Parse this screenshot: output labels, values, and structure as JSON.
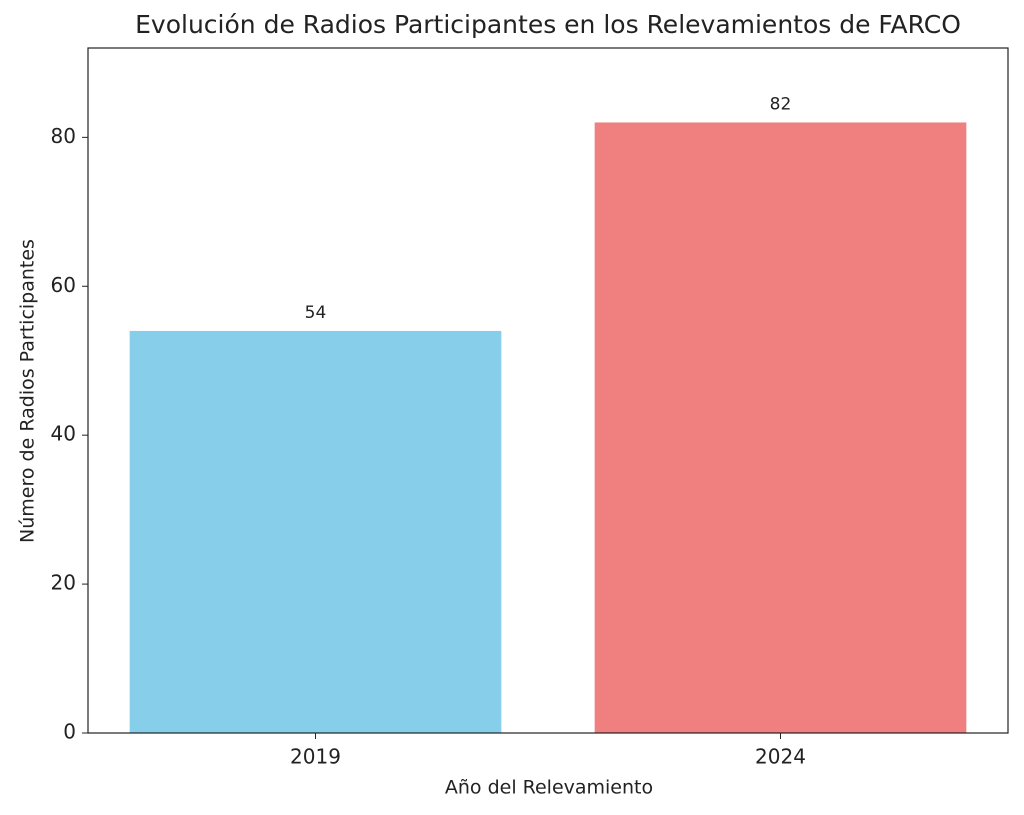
{
  "chart_data": {
    "type": "bar",
    "title": "Evolución de Radios Participantes en los Relevamientos de FARCO",
    "x_label": "Año del Relevamiento",
    "y_label": "Número de Radios Participantes",
    "categories": [
      "2019",
      "2024"
    ],
    "values": [
      54,
      82
    ],
    "colors": [
      "#87ceeb",
      "#f08080"
    ],
    "ylim": [
      0,
      92
    ],
    "yticks": [
      0,
      20,
      40,
      60,
      80
    ],
    "grid": false
  }
}
